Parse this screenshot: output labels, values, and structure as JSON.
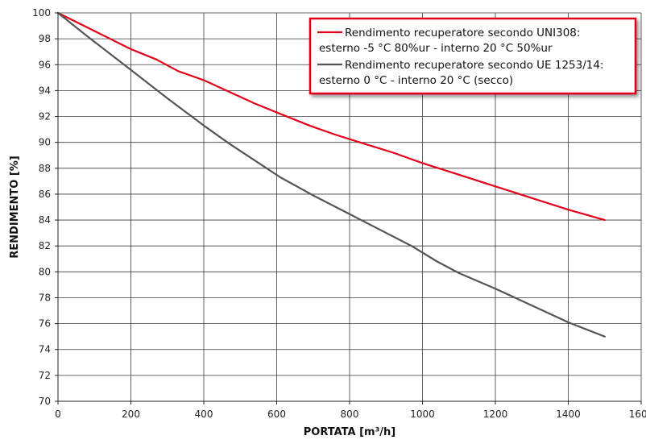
{
  "chart_data": {
    "type": "line",
    "xlabel": "PORTATA [m³/h]",
    "ylabel": "RENDIMENTO [%]",
    "xlim": [
      0,
      1600
    ],
    "ylim": [
      70,
      100
    ],
    "x_ticks": [
      0,
      200,
      400,
      600,
      800,
      1000,
      1200,
      1400,
      1600
    ],
    "y_ticks": [
      70,
      72,
      74,
      76,
      78,
      80,
      82,
      84,
      86,
      88,
      90,
      92,
      94,
      96,
      98,
      100
    ],
    "grid": true,
    "legend_position": "top-right",
    "series": [
      {
        "name": "Rendimento recuperatore secondo UNI308: esterno -5 °C 80%ur - interno 20 °C 50%ur",
        "legend_lines": [
          "Rendimento recuperatore secondo UNI308:",
          "esterno -5 °C 80%ur - interno 20 °C 50%ur"
        ],
        "color": "#e2001a",
        "x": [
          0,
          100,
          200,
          270,
          330,
          400,
          470,
          540,
          610,
          690,
          760,
          840,
          920,
          1000,
          1100,
          1200,
          1300,
          1400,
          1500
        ],
        "y": [
          100,
          98.6,
          97.2,
          96.4,
          95.5,
          94.8,
          93.9,
          93.0,
          92.2,
          91.3,
          90.6,
          89.9,
          89.2,
          88.4,
          87.5,
          86.6,
          85.7,
          84.8,
          84.0
        ]
      },
      {
        "name": "Rendimento recuperatore secondo UE 1253/14: esterno 0 °C - interno 20 °C (secco)",
        "legend_lines": [
          "Rendimento recuperatore secondo UE 1253/14:",
          "esterno 0 °C - interno 20 °C (secco)"
        ],
        "color": "#555555",
        "x": [
          0,
          80,
          200,
          300,
          400,
          470,
          540,
          610,
          700,
          790,
          880,
          970,
          1040,
          1100,
          1200,
          1300,
          1400,
          1500
        ],
        "y": [
          100,
          98.2,
          95.6,
          93.4,
          91.3,
          89.9,
          88.6,
          87.3,
          85.9,
          84.6,
          83.3,
          82.0,
          80.8,
          79.9,
          78.7,
          77.4,
          76.1,
          75.0
        ]
      }
    ]
  }
}
